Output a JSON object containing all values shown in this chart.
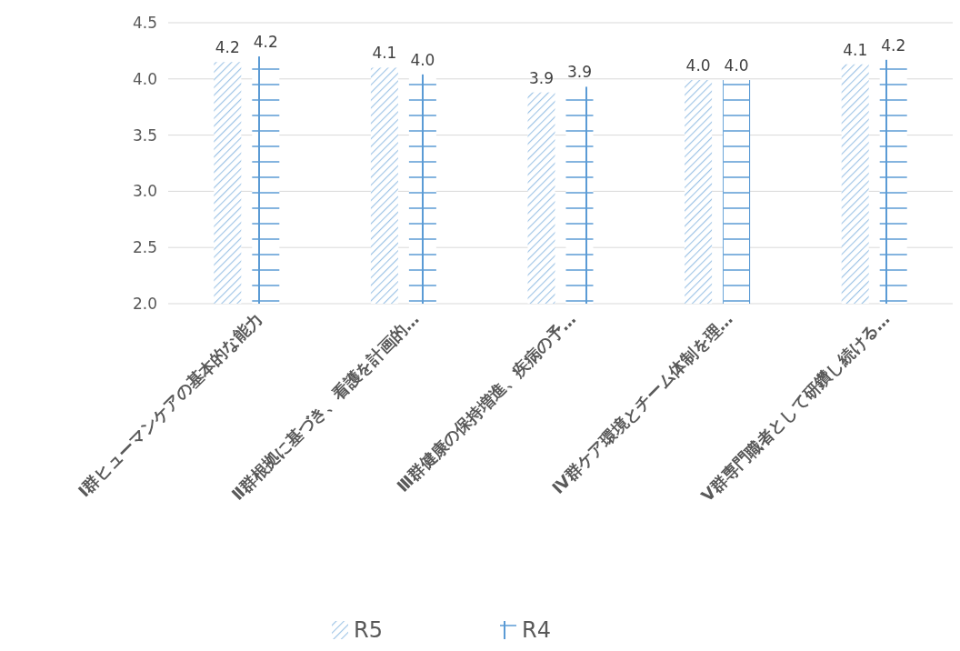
{
  "chart_data": {
    "type": "bar",
    "categories": [
      "Ⅰ群ヒューマンケアの基本的な能力",
      "Ⅱ群根拠に基づき、看護を計画的…",
      "Ⅲ群健康の保持増進、疾病の予…",
      "Ⅳ群ケア環境とチーム体制を理…",
      "Ⅴ群専門職者として研鑽し続ける…"
    ],
    "series": [
      {
        "name": "R5",
        "color": "#9dc3e6",
        "values": [
          4.15,
          4.1,
          3.88,
          3.99,
          4.13
        ],
        "value_labels": [
          "4.2",
          "4.1",
          "3.9",
          "4.0",
          "4.1"
        ]
      },
      {
        "name": "R4",
        "color": "#5b9bd5",
        "values": [
          4.2,
          4.04,
          3.93,
          3.99,
          4.17
        ],
        "value_labels": [
          "4.2",
          "4.0",
          "3.9",
          "4.0",
          "4.2"
        ]
      }
    ],
    "ylim": [
      2,
      4.5
    ],
    "yticks": [
      {
        "value": 2,
        "label": "2.0"
      },
      {
        "value": 2.5,
        "label": "2.5"
      },
      {
        "value": 3,
        "label": "3.0"
      },
      {
        "value": 3.5,
        "label": "3.5"
      },
      {
        "value": 4,
        "label": "4.0"
      },
      {
        "value": 4.5,
        "label": "4.5"
      }
    ],
    "grid": "y",
    "legend": "bottom"
  }
}
